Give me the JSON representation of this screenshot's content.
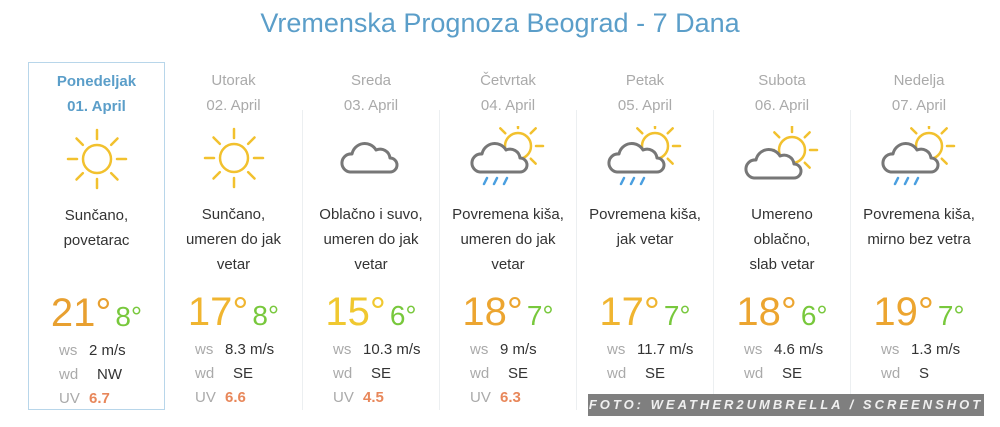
{
  "title": "Vremenska Prognoza Beograd - 7 Dana",
  "labels": {
    "ws": "ws",
    "wd": "wd",
    "uv": "UV"
  },
  "days": [
    {
      "name": "Ponedeljak",
      "date": "01. April",
      "icon": "sun-icon",
      "desc": [
        "Sunčano,",
        "povetarac"
      ],
      "hi": "21°",
      "lo": "8°",
      "hi_color": "#e8a030",
      "ws": "2 m/s",
      "wd": "NW",
      "uv": "6.7",
      "active": true
    },
    {
      "name": "Utorak",
      "date": "02. April",
      "icon": "sun-icon",
      "desc": [
        "Sunčano,",
        "umeren do jak",
        "vetar"
      ],
      "hi": "17°",
      "lo": "8°",
      "hi_color": "#f0b530",
      "ws": "8.3 m/s",
      "wd": "SE",
      "uv": "6.6"
    },
    {
      "name": "Sreda",
      "date": "03. April",
      "icon": "cloud-icon",
      "desc": [
        "Oblačno i suvo,",
        "umeren do jak",
        "vetar"
      ],
      "hi": "15°",
      "lo": "6°",
      "hi_color": "#f0c830",
      "ws": "10.3 m/s",
      "wd": "SE",
      "uv": "4.5"
    },
    {
      "name": "Četvrtak",
      "date": "04. April",
      "icon": "sun-cloud-rain-icon",
      "desc": [
        "Povremena kiša,",
        "umeren do jak",
        "vetar"
      ],
      "hi": "18°",
      "lo": "7°",
      "hi_color": "#eca530",
      "ws": "9 m/s",
      "wd": "SE",
      "uv": "6.3"
    },
    {
      "name": "Petak",
      "date": "05. April",
      "icon": "sun-cloud-rain-icon",
      "desc": [
        "Povremena kiša,",
        "jak vetar"
      ],
      "hi": "17°",
      "lo": "7°",
      "hi_color": "#f0b530",
      "ws": "11.7 m/s",
      "wd": "SE"
    },
    {
      "name": "Subota",
      "date": "06. April",
      "icon": "sun-cloud-icon",
      "desc": [
        "Umereno",
        "oblačno,",
        "slab vetar"
      ],
      "hi": "18°",
      "lo": "6°",
      "hi_color": "#eca530",
      "ws": "4.6 m/s",
      "wd": "SE"
    },
    {
      "name": "Nedelja",
      "date": "07. April",
      "icon": "sun-cloud-rain-icon",
      "desc": [
        "Povremena kiša,",
        "mirno bez vetra"
      ],
      "hi": "19°",
      "lo": "7°",
      "hi_color": "#eca530",
      "ws": "1.3 m/s",
      "wd": "S"
    }
  ],
  "colors": {
    "title": "#5b9ec9",
    "low_temp": "#78c83c",
    "uv": "#e8875a",
    "sun": "#f2c12e",
    "cloud": "#777777",
    "rain": "#4a9fe0"
  },
  "watermark": "FOTO: WEATHER2UMBRELLA / SCREENSHOT"
}
